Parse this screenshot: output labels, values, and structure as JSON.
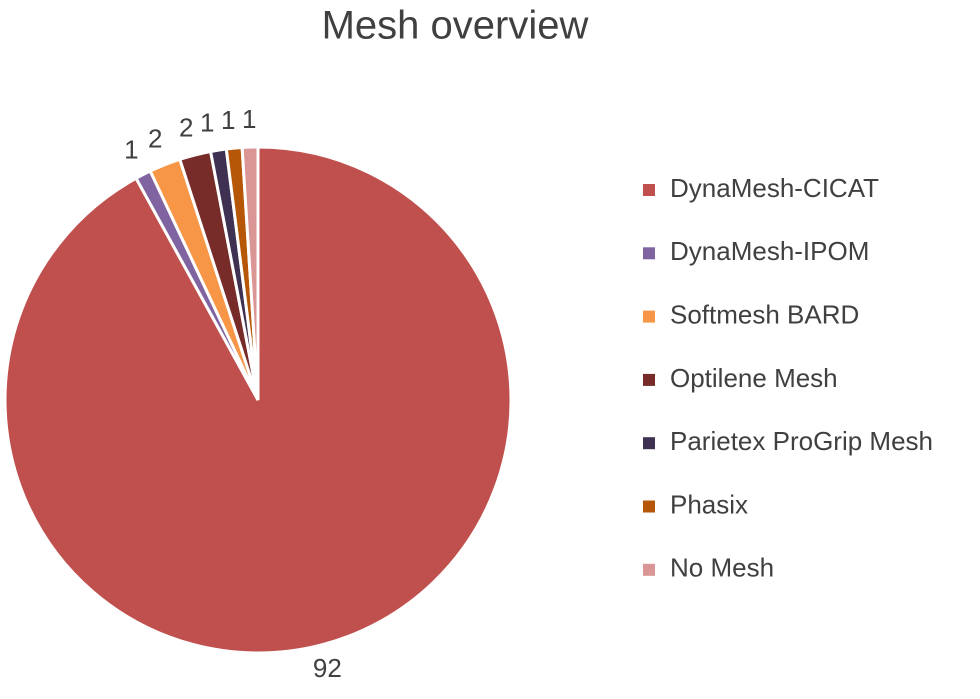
{
  "chart_data": {
    "type": "pie",
    "title": "Mesh overview",
    "categories": [
      "DynaMesh-CICAT",
      "DynaMesh-IPOM",
      "Softmesh BARD",
      "Optilene Mesh",
      "Parietex ProGrip Mesh",
      "Phasix",
      "No Mesh"
    ],
    "values": [
      92,
      1,
      2,
      2,
      1,
      1,
      1
    ],
    "colors": [
      "#c0504d",
      "#8064a2",
      "#f79646",
      "#772c2a",
      "#3f3151",
      "#b65708",
      "#d99694"
    ],
    "legend": "right"
  }
}
